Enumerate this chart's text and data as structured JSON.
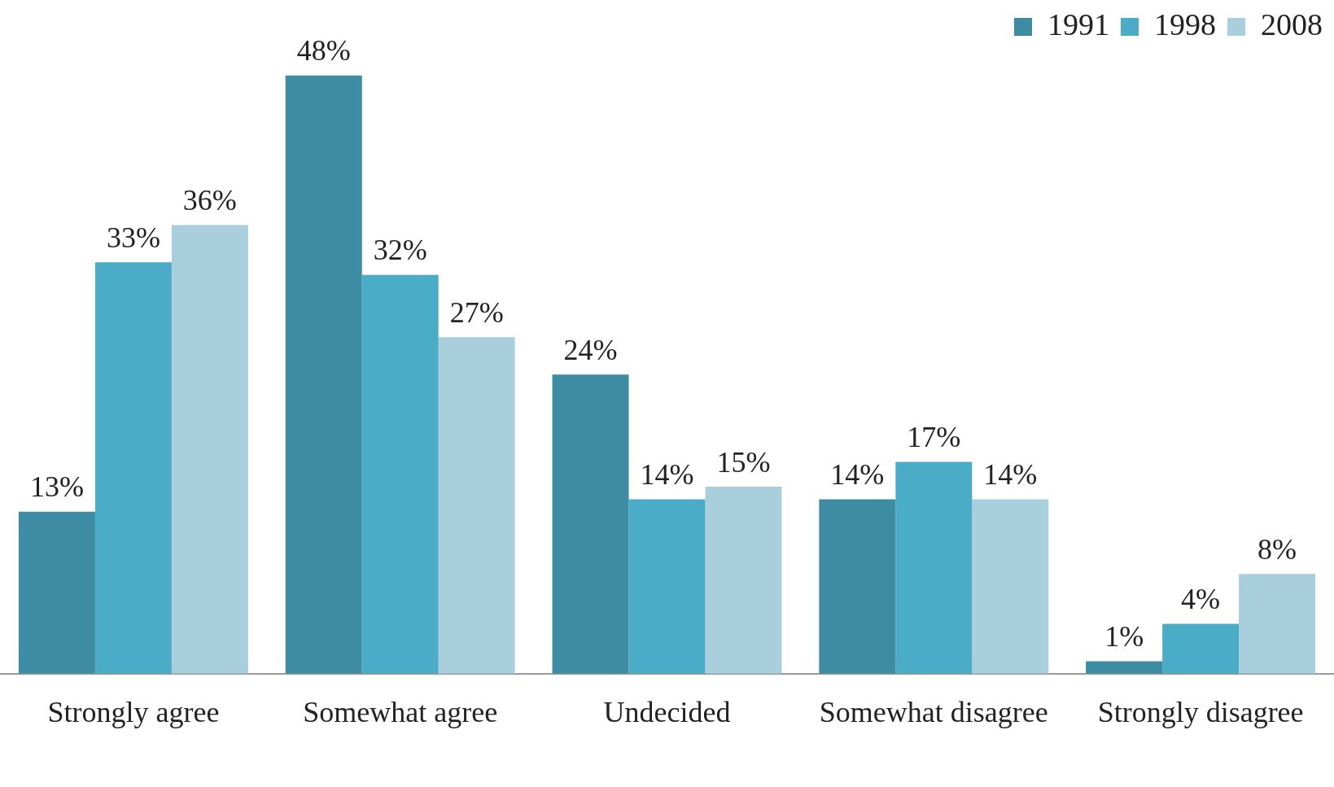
{
  "chart_data": {
    "type": "bar",
    "categories": [
      "Strongly agree",
      "Somewhat agree",
      "Undecided",
      "Somewhat disagree",
      "Strongly disagree"
    ],
    "series": [
      {
        "name": "1991",
        "color": "#3d8ca3",
        "values": [
          13,
          48,
          24,
          14,
          1
        ],
        "value_labels": [
          "13%",
          "48%",
          "24%",
          "14%",
          "1%"
        ]
      },
      {
        "name": "1998",
        "color": "#4aacc6",
        "values": [
          33,
          32,
          14,
          17,
          4
        ],
        "value_labels": [
          "33%",
          "32%",
          "14%",
          "17%",
          "4%"
        ]
      },
      {
        "name": "2008",
        "color": "#a9cfdd",
        "values": [
          36,
          27,
          15,
          14,
          8
        ],
        "value_labels": [
          "36%",
          "27%",
          "15%",
          "14%",
          "8%"
        ]
      }
    ],
    "legend": "top right"
  }
}
